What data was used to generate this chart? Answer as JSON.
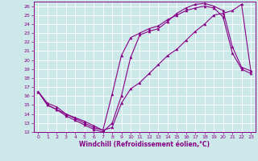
{
  "xlabel": "Windchill (Refroidissement éolien,°C)",
  "xlim": [
    -0.5,
    23.5
  ],
  "ylim": [
    12,
    26.5
  ],
  "xticks": [
    0,
    1,
    2,
    3,
    4,
    5,
    6,
    7,
    8,
    9,
    10,
    11,
    12,
    13,
    14,
    15,
    16,
    17,
    18,
    19,
    20,
    21,
    22,
    23
  ],
  "yticks": [
    12,
    13,
    14,
    15,
    16,
    17,
    18,
    19,
    20,
    21,
    22,
    23,
    24,
    25,
    26
  ],
  "bg_color": "#cce8e8",
  "line_color": "#880088",
  "line1_x": [
    0,
    1,
    2,
    3,
    4,
    5,
    6,
    7,
    8,
    9,
    10,
    11,
    12,
    13,
    14,
    15,
    16,
    17,
    18,
    19,
    20,
    21,
    22,
    23
  ],
  "line1_y": [
    16.5,
    15.0,
    14.5,
    13.8,
    13.3,
    12.8,
    12.3,
    12.0,
    13.0,
    16.0,
    20.3,
    22.8,
    23.2,
    23.5,
    24.3,
    25.2,
    25.8,
    26.2,
    26.3,
    26.0,
    25.5,
    21.5,
    19.2,
    18.8
  ],
  "line2_x": [
    0,
    1,
    2,
    3,
    4,
    5,
    6,
    7,
    8,
    9,
    10,
    11,
    12,
    13,
    14,
    15,
    16,
    17,
    18,
    19,
    20,
    21,
    22,
    23
  ],
  "line2_y": [
    16.5,
    15.2,
    14.8,
    14.0,
    13.6,
    13.2,
    12.7,
    12.2,
    16.2,
    20.5,
    22.5,
    23.0,
    23.5,
    23.8,
    24.5,
    25.0,
    25.5,
    25.8,
    26.0,
    25.8,
    24.8,
    20.8,
    19.0,
    18.5
  ],
  "line3_x": [
    0,
    1,
    2,
    3,
    4,
    5,
    6,
    7,
    8,
    9,
    10,
    11,
    12,
    13,
    14,
    15,
    16,
    17,
    18,
    19,
    20,
    21,
    22,
    23
  ],
  "line3_y": [
    16.5,
    15.0,
    14.5,
    14.0,
    13.5,
    13.0,
    12.5,
    12.2,
    12.5,
    15.2,
    16.8,
    17.5,
    18.5,
    19.5,
    20.5,
    21.2,
    22.2,
    23.2,
    24.0,
    25.0,
    25.2,
    25.5,
    26.2,
    18.8
  ],
  "tick_fontsize": 4.5,
  "xlabel_fontsize": 5.5
}
